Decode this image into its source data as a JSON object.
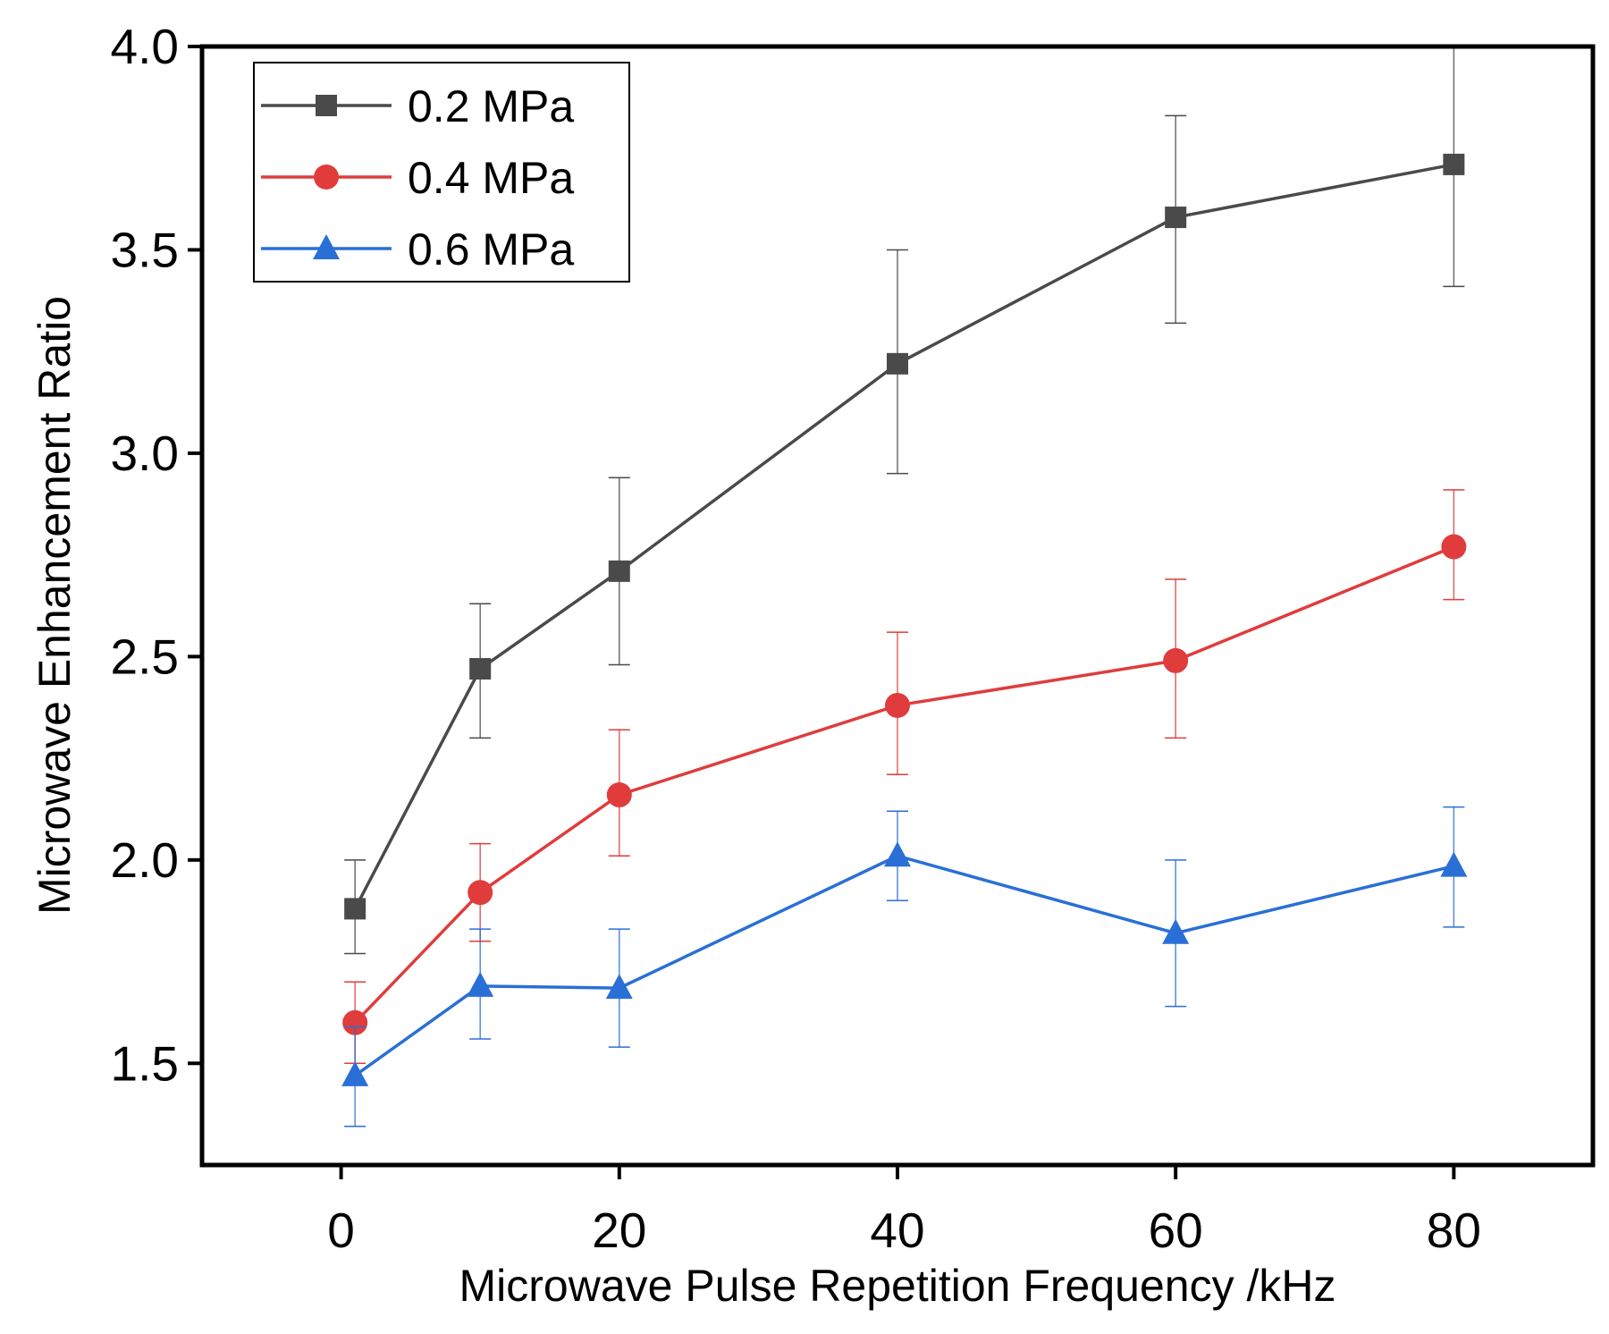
{
  "chart_data": {
    "type": "line",
    "title": "",
    "xlabel": "Microwave Pulse Repetition Frequency /kHz",
    "ylabel": "Microwave Enhancement Ratio",
    "xlim": [
      -10,
      90
    ],
    "ylim": [
      1.25,
      4.0
    ],
    "xticks": [
      0,
      20,
      40,
      60,
      80
    ],
    "xtick_labels": [
      "0",
      "20",
      "40",
      "60",
      "80"
    ],
    "yticks": [
      1.5,
      2.0,
      2.5,
      3.0,
      3.5,
      4.0
    ],
    "ytick_labels": [
      "1.5",
      "2.0",
      "2.5",
      "3.0",
      "3.5",
      "4.0"
    ],
    "grid": false,
    "legend_position": "top-left",
    "x": [
      1,
      10,
      20,
      40,
      60,
      80
    ],
    "series": [
      {
        "name": "0.2 MPa",
        "color": "#4a4a4a",
        "marker": "square",
        "values": [
          1.88,
          2.47,
          2.71,
          3.22,
          3.58,
          3.71
        ],
        "err_low": [
          1.77,
          2.3,
          2.48,
          2.95,
          3.32,
          3.41
        ],
        "err_high": [
          2.0,
          2.63,
          2.94,
          3.5,
          3.83,
          4.01
        ]
      },
      {
        "name": "0.4 MPa",
        "color": "#e03c3c",
        "marker": "circle",
        "values": [
          1.6,
          1.92,
          2.16,
          2.38,
          2.49,
          2.77
        ],
        "err_low": [
          1.5,
          1.8,
          2.01,
          2.21,
          2.3,
          2.64
        ],
        "err_high": [
          1.7,
          2.04,
          2.32,
          2.56,
          2.69,
          2.91
        ]
      },
      {
        "name": "0.6 MPa",
        "color": "#2a6fd6",
        "marker": "triangle",
        "values": [
          1.47,
          1.69,
          1.685,
          2.01,
          1.82,
          1.985
        ],
        "err_low": [
          1.345,
          1.56,
          1.54,
          1.9,
          1.64,
          1.835
        ],
        "err_high": [
          1.59,
          1.83,
          1.83,
          2.12,
          2.0,
          2.13
        ]
      }
    ]
  }
}
